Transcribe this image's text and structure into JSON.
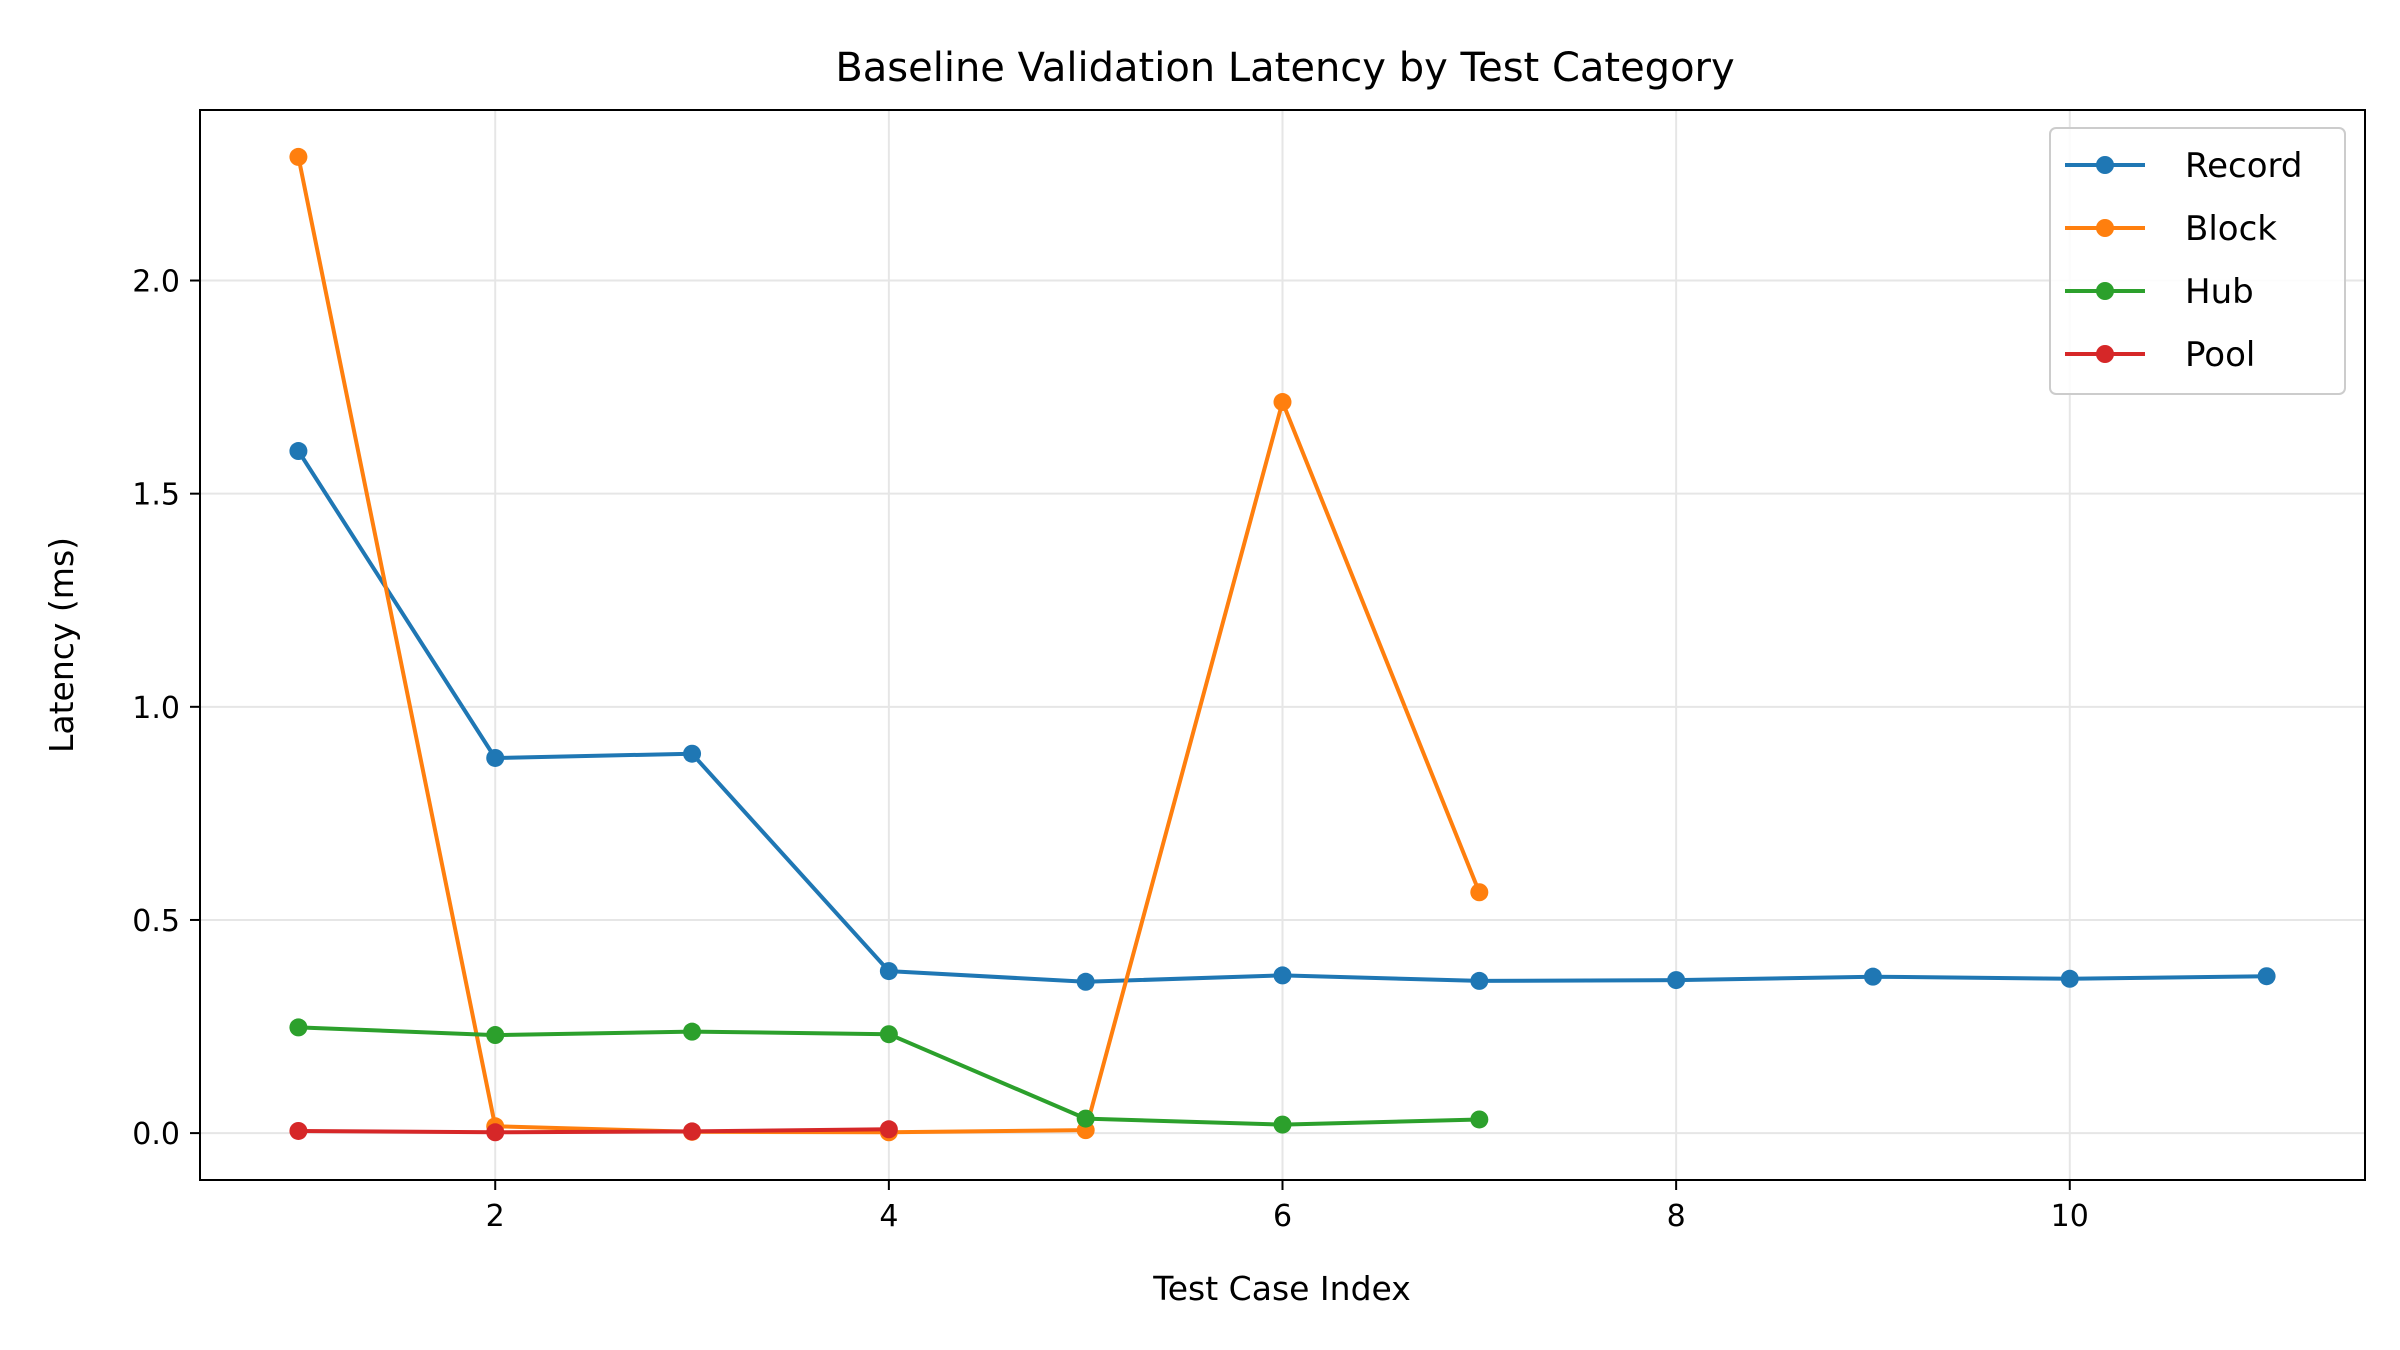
{
  "chart_data": {
    "type": "line",
    "title": "Baseline Validation Latency by Test Category",
    "xlabel": "Test Case Index",
    "ylabel": "Latency (ms)",
    "xlim": [
      0.5,
      11.5
    ],
    "ylim": [
      -0.11,
      2.4
    ],
    "xticks": [
      2,
      4,
      6,
      8,
      10
    ],
    "yticks": [
      0.0,
      0.5,
      1.0,
      1.5,
      2.0
    ],
    "ytick_labels": [
      "0.0",
      "0.5",
      "1.0",
      "1.5",
      "2.0"
    ],
    "grid": true,
    "legend_position": "top-right",
    "series": [
      {
        "name": "Record",
        "color": "#1f77b4",
        "x": [
          1,
          2,
          3,
          4,
          5,
          6,
          7,
          8,
          9,
          10,
          11
        ],
        "y": [
          1.6,
          0.88,
          0.89,
          0.38,
          0.355,
          0.37,
          0.357,
          0.359,
          0.367,
          0.362,
          0.368
        ]
      },
      {
        "name": "Block",
        "color": "#ff7f0e",
        "x": [
          1,
          2,
          3,
          4,
          5,
          6,
          7
        ],
        "y": [
          2.29,
          0.016,
          0.003,
          0.002,
          0.007,
          1.715,
          0.565
        ]
      },
      {
        "name": "Hub",
        "color": "#2ca02c",
        "x": [
          1,
          2,
          3,
          4,
          5,
          6,
          7
        ],
        "y": [
          0.248,
          0.23,
          0.238,
          0.232,
          0.034,
          0.02,
          0.032
        ]
      },
      {
        "name": "Pool",
        "color": "#d62728",
        "x": [
          1,
          2,
          3,
          4
        ],
        "y": [
          0.005,
          0.002,
          0.004,
          0.009
        ]
      }
    ]
  }
}
